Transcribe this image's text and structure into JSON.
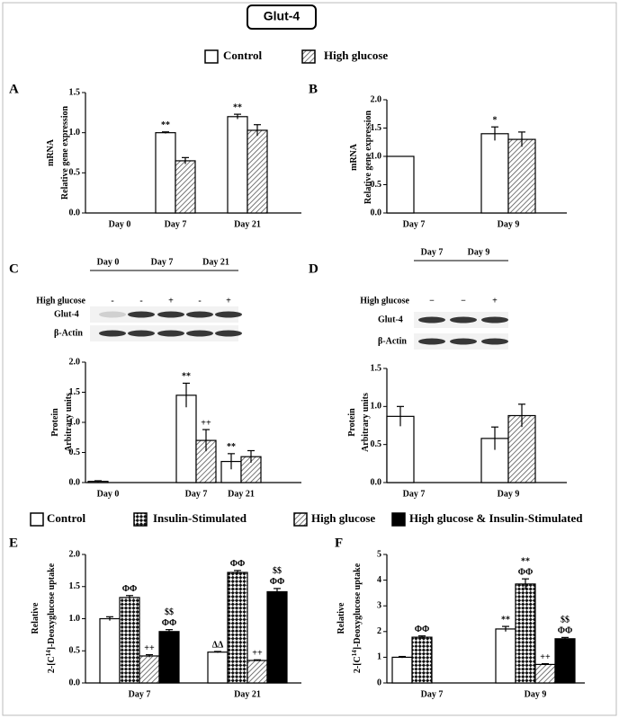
{
  "title": "Glut-4",
  "chart_data": [
    {
      "panel": "A",
      "type": "bar",
      "ylabel": [
        [
          "mRNA"
        ],
        [
          "Relative gene expression"
        ]
      ],
      "categories": [
        "Day 0",
        "Day 7",
        "Day 21"
      ],
      "ylim": [
        0,
        1.5
      ],
      "yticks": [
        {
          "value": 0,
          "label": "0.0"
        },
        {
          "value": 0.5,
          "label": "0.5"
        },
        {
          "value": 1,
          "label": "1.0"
        },
        {
          "value": 1.5,
          "label": "1.5"
        }
      ],
      "series": [
        {
          "name": "Control",
          "color": "#ffffff",
          "pattern": null,
          "values": [
            null,
            1.0,
            1.2
          ],
          "errors": [
            null,
            0.01,
            0.03
          ],
          "annotations": [
            null,
            [
              "**"
            ],
            [
              "**"
            ]
          ]
        },
        {
          "name": "High glucose",
          "color": "#ffffff",
          "pattern": "hatch",
          "values": [
            null,
            0.65,
            1.03
          ],
          "errors": [
            null,
            0.04,
            0.07
          ]
        }
      ]
    },
    {
      "panel": "B",
      "type": "bar",
      "ylabel": [
        [
          "mRNA"
        ],
        [
          "Relative gene expression"
        ]
      ],
      "categories": [
        "Day 7",
        "Day 9"
      ],
      "ylim": [
        0,
        2
      ],
      "yticks": [
        {
          "value": 0,
          "label": "0.0"
        },
        {
          "value": 0.5,
          "label": "0.5"
        },
        {
          "value": 1,
          "label": "1.0"
        },
        {
          "value": 1.5,
          "label": "1.5"
        },
        {
          "value": 2,
          "label": "2.0"
        }
      ],
      "series": [
        {
          "name": "Control",
          "color": "#ffffff",
          "pattern": null,
          "values": [
            1.0,
            1.4
          ],
          "errors": [
            null,
            0.12
          ],
          "annotations": [
            null,
            [
              "*"
            ]
          ]
        },
        {
          "name": "High glucose",
          "color": "#ffffff",
          "pattern": "hatch",
          "values": [
            null,
            1.3
          ],
          "errors": [
            null,
            0.13
          ]
        }
      ]
    },
    {
      "panel": "C",
      "type": "bar",
      "blot": {
        "days": [
          "Day 0",
          "Day 7",
          "Day 21"
        ],
        "treatment": "High glucose",
        "signs": [
          "-",
          "-",
          "+",
          "-",
          "+"
        ],
        "bands": [
          "Glut-4",
          "β-Actin"
        ]
      },
      "ylabel": [
        [
          "Protein"
        ],
        [
          "Arbitrary units"
        ]
      ],
      "categories": [
        "Day 0",
        "Day 7",
        "Day 21"
      ],
      "ylim": [
        0,
        2
      ],
      "yticks": [
        {
          "value": 0,
          "label": "0.0"
        },
        {
          "value": 0.5,
          "label": "0.5"
        },
        {
          "value": 1,
          "label": "1.0"
        },
        {
          "value": 1.5,
          "label": "1.5"
        },
        {
          "value": 2,
          "label": "2.0"
        }
      ],
      "series": [
        {
          "name": "Control",
          "color": "#ffffff",
          "pattern": null,
          "values": [
            0.02,
            1.45,
            0.35
          ],
          "errors": [
            0.01,
            0.2,
            0.13
          ],
          "annotations": [
            null,
            [
              "**"
            ],
            [
              "**"
            ]
          ]
        },
        {
          "name": "High glucose",
          "color": "#ffffff",
          "pattern": "hatch",
          "values": [
            null,
            0.7,
            0.43
          ],
          "errors": [
            null,
            0.18,
            0.1
          ],
          "annotations": [
            null,
            [
              "++"
            ],
            null
          ]
        }
      ]
    },
    {
      "panel": "D",
      "type": "bar",
      "blot": {
        "days": [
          "Day 7",
          "Day 9"
        ],
        "treatment": "High glucose",
        "signs": [
          "−",
          "−",
          "+"
        ],
        "bands": [
          "Glut-4",
          "β-Actin"
        ]
      },
      "ylabel": [
        [
          "Protein"
        ],
        [
          "Arbitrary units"
        ]
      ],
      "categories": [
        "Day 7",
        "Day 9"
      ],
      "ylim": [
        0,
        1.5
      ],
      "yticks": [
        {
          "value": 0,
          "label": "0.0"
        },
        {
          "value": 0.5,
          "label": "0.5"
        },
        {
          "value": 1,
          "label": "1.0"
        },
        {
          "value": 1.5,
          "label": "1.5"
        }
      ],
      "series": [
        {
          "name": "Control",
          "color": "#ffffff",
          "pattern": null,
          "values": [
            0.87,
            0.58
          ],
          "errors": [
            0.13,
            0.15
          ]
        },
        {
          "name": "High glucose",
          "color": "#ffffff",
          "pattern": "hatch",
          "values": [
            null,
            0.88
          ],
          "errors": [
            null,
            0.15
          ]
        }
      ]
    },
    {
      "panel": "E",
      "type": "bar",
      "ylabel": [
        [
          "Relative"
        ],
        [
          "2-[C",
          "14",
          "]-Deoxyglucose uptake"
        ]
      ],
      "categories": [
        "Day 7",
        "Day 21"
      ],
      "ylim": [
        0,
        2
      ],
      "yticks": [
        {
          "value": 0,
          "label": "0.0"
        },
        {
          "value": 0.5,
          "label": "0.5"
        },
        {
          "value": 1,
          "label": "1.0"
        },
        {
          "value": 1.5,
          "label": "1.5"
        },
        {
          "value": 2,
          "label": "2.0"
        }
      ],
      "series": [
        {
          "name": "Control",
          "color": "#ffffff",
          "pattern": null,
          "values": [
            1.0,
            0.48
          ],
          "errors": [
            0.03,
            0.01
          ],
          "annotations": [
            null,
            [
              "ΔΔ"
            ]
          ]
        },
        {
          "name": "Insulin-Stimulated",
          "color": "#ffffff",
          "pattern": "check",
          "values": [
            1.33,
            1.72
          ],
          "errors": [
            0.03,
            0.03
          ],
          "annotations": [
            [
              "ΦΦ"
            ],
            [
              "ΦΦ"
            ]
          ]
        },
        {
          "name": "High glucose",
          "color": "#ffffff",
          "pattern": "hatch",
          "values": [
            0.42,
            0.35
          ],
          "errors": [
            0.02,
            0.01
          ],
          "annotations": [
            [
              "++"
            ],
            [
              "++"
            ]
          ]
        },
        {
          "name": "High glucose & Insulin-Stimulated",
          "color": "#000000",
          "pattern": null,
          "values": [
            0.8,
            1.42
          ],
          "errors": [
            0.03,
            0.05
          ],
          "annotations": [
            [
              "$$",
              "ΦΦ"
            ],
            [
              "$$",
              "ΦΦ"
            ]
          ]
        }
      ]
    },
    {
      "panel": "F",
      "type": "bar",
      "ylabel": [
        [
          "Relative"
        ],
        [
          "2-[C",
          "14",
          "]-Deoxyglucose uptake"
        ]
      ],
      "categories": [
        "Day 7",
        "Day 9"
      ],
      "ylim": [
        0,
        5
      ],
      "yticks": [
        0,
        1,
        2,
        3,
        4,
        5
      ],
      "series": [
        {
          "name": "Control",
          "color": "#ffffff",
          "pattern": null,
          "values": [
            1.0,
            2.1
          ],
          "errors": [
            0.03,
            0.1
          ],
          "annotations": [
            null,
            [
              "**"
            ]
          ]
        },
        {
          "name": "Insulin-Stimulated",
          "color": "#ffffff",
          "pattern": "check",
          "values": [
            1.78,
            3.85
          ],
          "errors": [
            0.05,
            0.2
          ],
          "annotations": [
            [
              "ΦΦ"
            ],
            [
              "**",
              "ΦΦ"
            ]
          ]
        },
        {
          "name": "High glucose",
          "color": "#ffffff",
          "pattern": "hatch",
          "values": [
            null,
            0.72
          ],
          "errors": [
            null,
            0.03
          ],
          "annotations": [
            null,
            [
              "++"
            ]
          ]
        },
        {
          "name": "High glucose & Insulin-Stimulated",
          "color": "#000000",
          "pattern": null,
          "values": [
            null,
            1.72
          ],
          "errors": [
            null,
            0.05
          ],
          "annotations": [
            null,
            [
              "$$",
              "ΦΦ"
            ]
          ]
        }
      ]
    }
  ]
}
